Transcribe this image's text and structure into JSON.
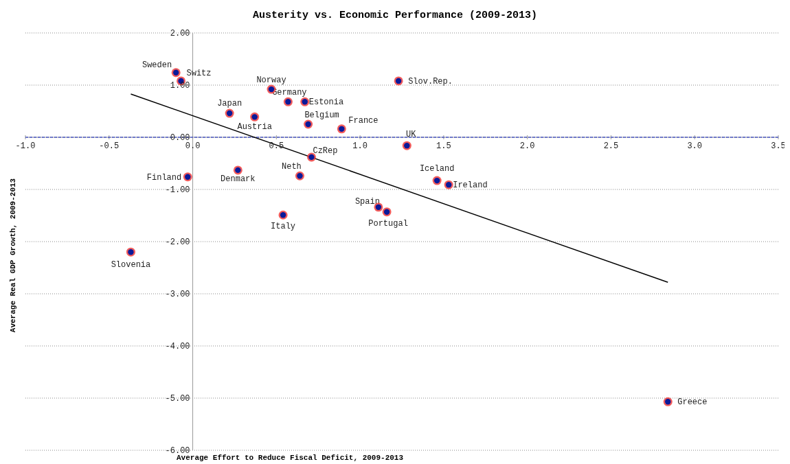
{
  "chart_data": {
    "type": "scatter",
    "title": "Austerity vs. Economic Performance (2009-2013)",
    "xlabel": "Average Effort to Reduce Fiscal Deficit, 2009-2013",
    "ylabel": "Average Real GDP Growth, 2009-2013",
    "xlim": [
      -1.0,
      3.5
    ],
    "xticks": [
      {
        "value": -1,
        "label": "-1.0"
      },
      -0.5,
      {
        "value": 0,
        "label": "0.0"
      },
      0.5,
      {
        "value": 1,
        "label": "1.0"
      },
      1.5,
      {
        "value": 2,
        "label": "2.0"
      },
      2.5,
      {
        "value": 3,
        "label": "3.0"
      },
      3.5
    ],
    "ylim": [
      -6,
      2
    ],
    "yticks": [
      {
        "value": -6,
        "label": "-6.00"
      },
      {
        "value": -5,
        "label": "-5.00"
      },
      {
        "value": -4,
        "label": "-4.00"
      },
      {
        "value": -3,
        "label": "-3.00"
      },
      {
        "value": -2,
        "label": "-2.00"
      },
      {
        "value": -1,
        "label": "-1.00"
      },
      {
        "value": 0,
        "label": "0.00"
      },
      {
        "value": 1,
        "label": "1.00"
      },
      {
        "value": 2,
        "label": "2.00"
      }
    ],
    "grid": "y",
    "series": [
      {
        "color": "#0a1a9a",
        "marker": "circle",
        "x": [
          -0.1,
          -0.07,
          0.47,
          1.23,
          0.22,
          0.37,
          0.57,
          0.67,
          0.69,
          0.89,
          1.28,
          0.71,
          0.27,
          -0.03,
          0.64,
          1.46,
          1.53,
          1.11,
          1.16,
          0.54,
          -0.37,
          2.84
        ],
        "values": [
          1.24,
          1.08,
          0.92,
          1.08,
          0.46,
          0.39,
          0.68,
          0.68,
          0.25,
          0.16,
          -0.16,
          -0.38,
          -0.63,
          -0.76,
          -0.74,
          -0.83,
          -0.91,
          -1.34,
          -1.43,
          -1.49,
          -2.2,
          -5.07
        ]
      },
      {
        "type": "line",
        "color": "#000000",
        "x": [
          -0.37,
          2.84
        ],
        "values": [
          0.83,
          -2.78
        ]
      }
    ],
    "ref_lines": [
      {
        "axis": "y",
        "value": 0,
        "color": "#1a2fd0",
        "line_style": "dashed"
      }
    ],
    "annotations": [
      {
        "text": "Sweden",
        "x": -0.1,
        "y": 1.24
      },
      {
        "text": "Switz",
        "x": -0.07,
        "y": 1.08
      },
      {
        "text": "Norway",
        "x": 0.47,
        "y": 0.92
      },
      {
        "text": "Slov.Rep.",
        "x": 1.23,
        "y": 1.08
      },
      {
        "text": "Japan",
        "x": 0.22,
        "y": 0.46
      },
      {
        "text": "Austria",
        "x": 0.37,
        "y": 0.39
      },
      {
        "text": "Germany",
        "x": 0.57,
        "y": 0.68
      },
      {
        "text": "Estonia",
        "x": 0.67,
        "y": 0.68
      },
      {
        "text": "Belgium",
        "x": 0.69,
        "y": 0.25
      },
      {
        "text": "France",
        "x": 0.89,
        "y": 0.16
      },
      {
        "text": "UK",
        "x": 1.28,
        "y": -0.16
      },
      {
        "text": "CzRep",
        "x": 0.71,
        "y": -0.38
      },
      {
        "text": "Denmark",
        "x": 0.27,
        "y": -0.63
      },
      {
        "text": "Finland",
        "x": -0.03,
        "y": -0.76
      },
      {
        "text": "Neth",
        "x": 0.64,
        "y": -0.74
      },
      {
        "text": "Iceland",
        "x": 1.46,
        "y": -0.83
      },
      {
        "text": "Ireland",
        "x": 1.53,
        "y": -0.91
      },
      {
        "text": "Spain",
        "x": 1.11,
        "y": -1.34
      },
      {
        "text": "Portugal",
        "x": 1.16,
        "y": -1.43
      },
      {
        "text": "Italy",
        "x": 0.54,
        "y": -1.49
      },
      {
        "text": "Slovenia",
        "x": -0.37,
        "y": -2.2
      },
      {
        "text": "Greece",
        "x": 2.84,
        "y": -5.07
      }
    ]
  }
}
